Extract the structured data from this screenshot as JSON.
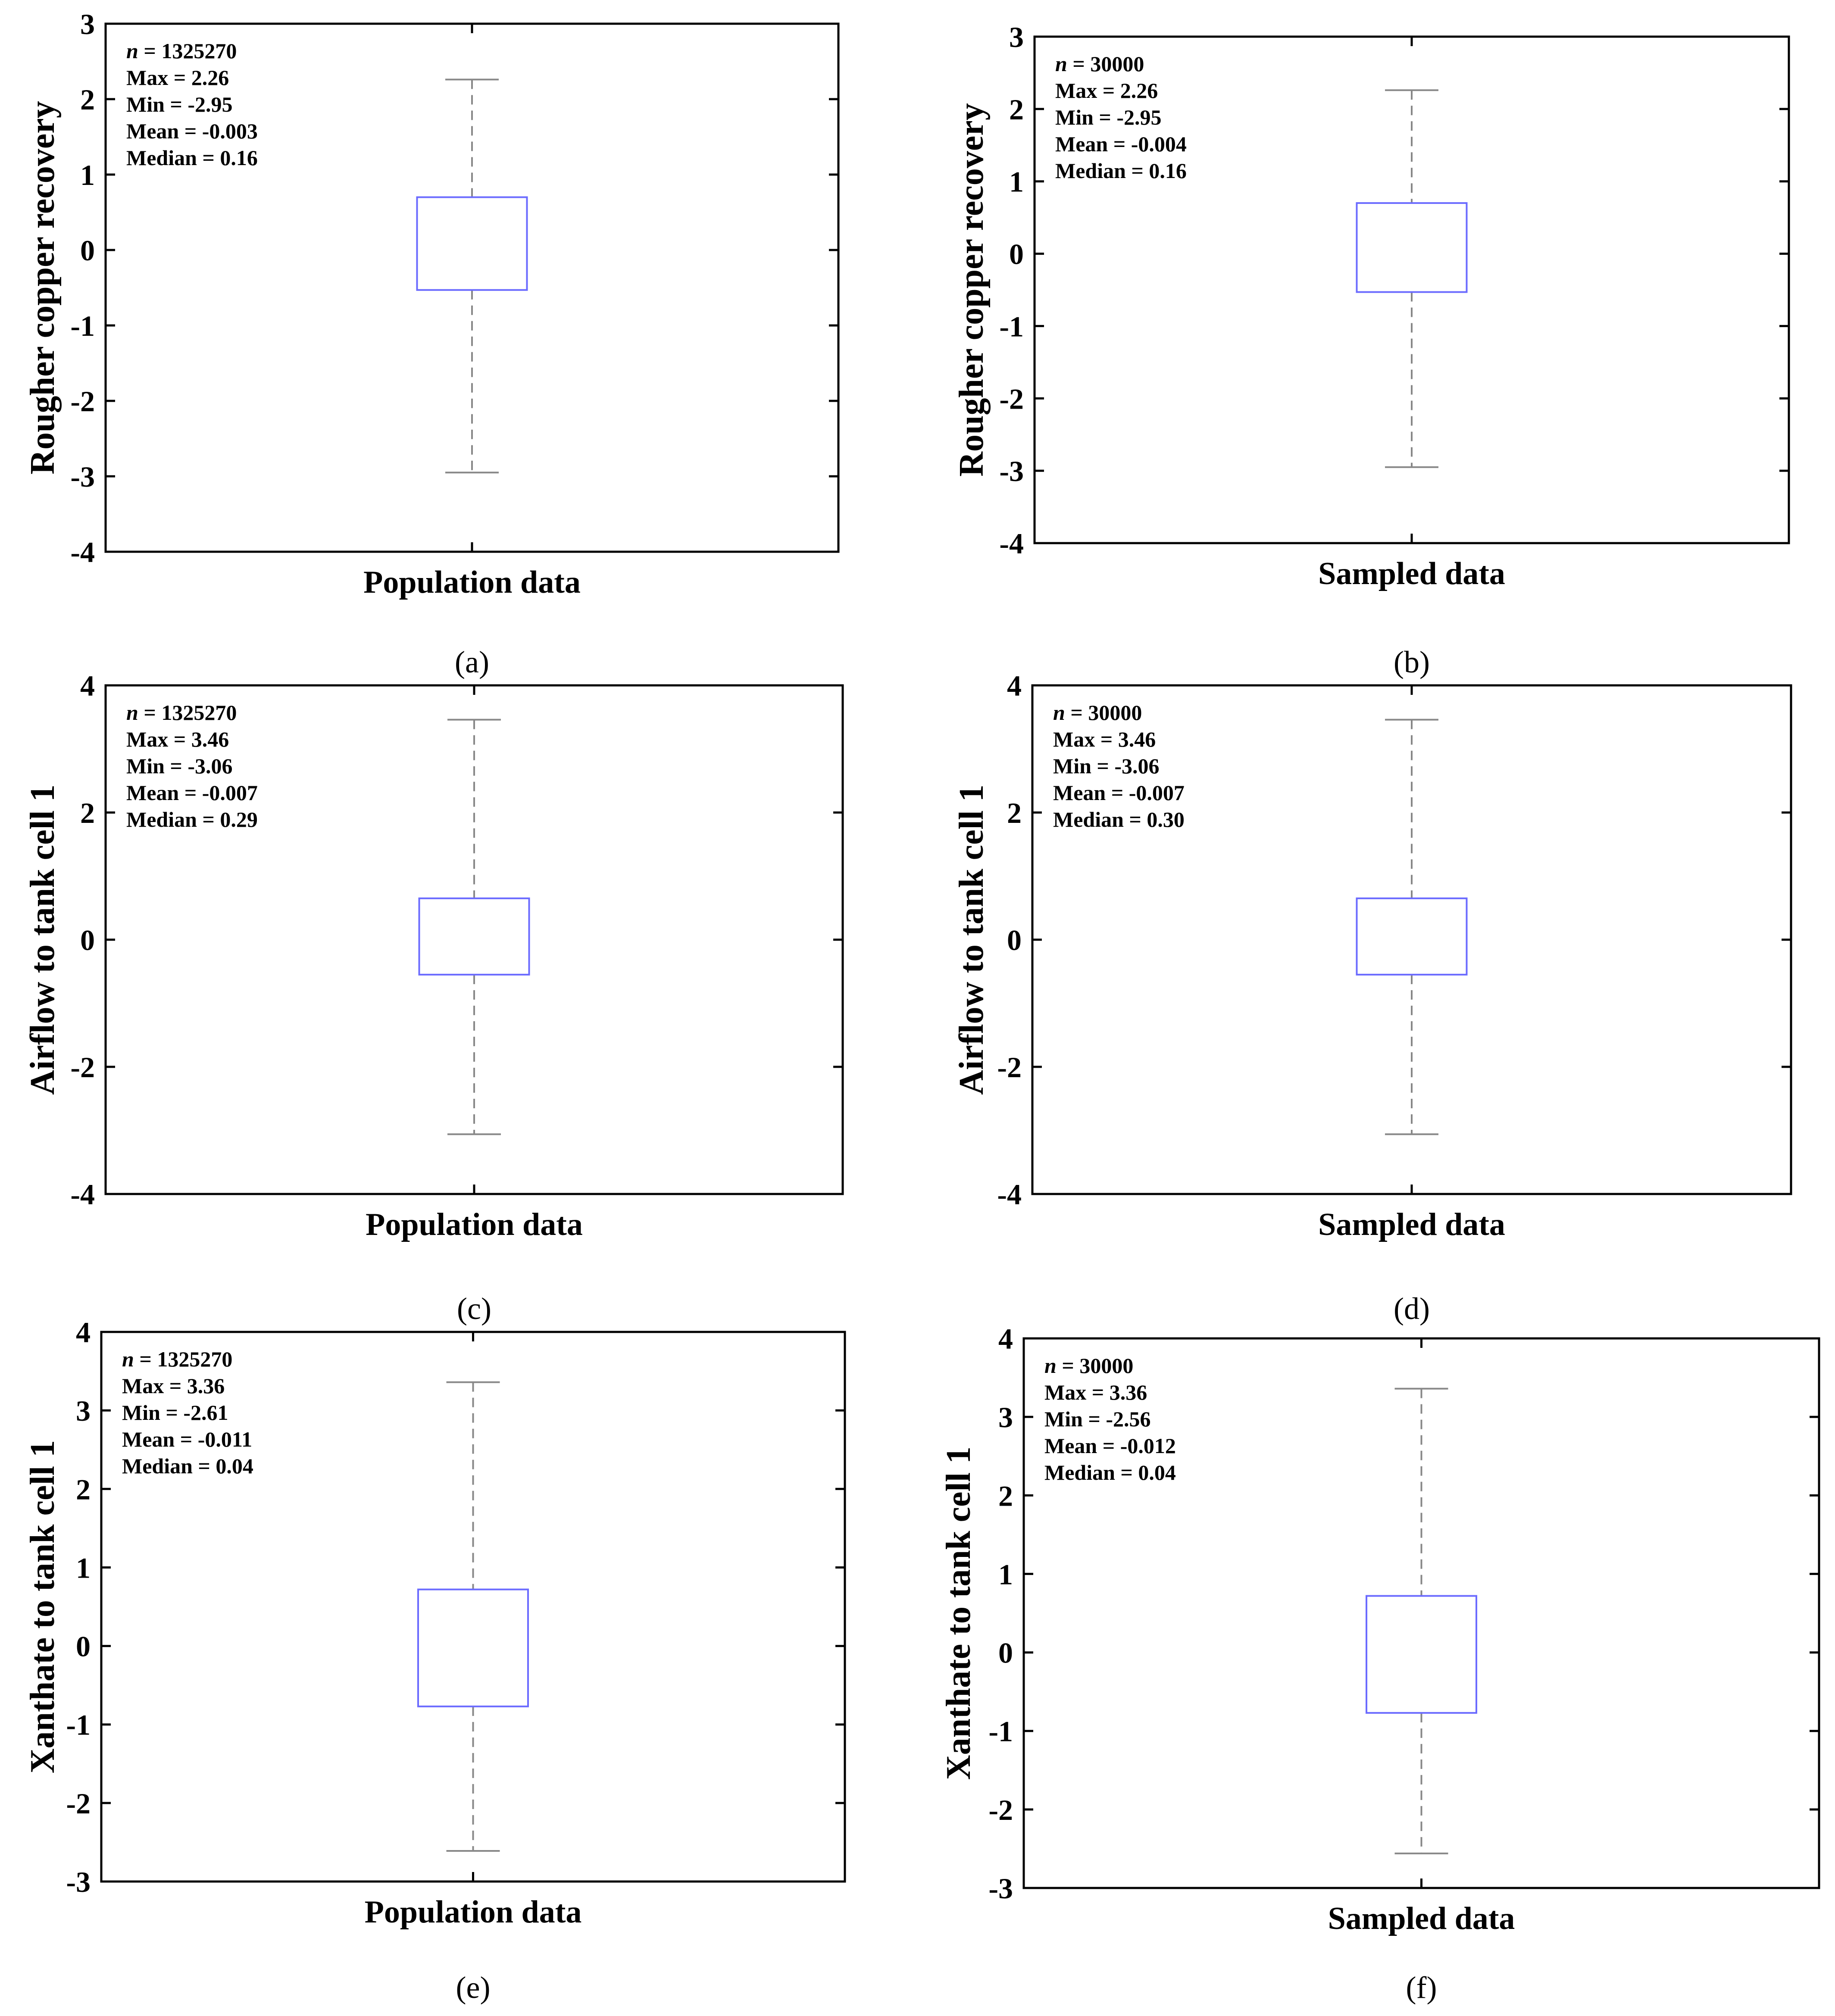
{
  "chart_data": [
    {
      "type": "boxplot",
      "panel_label": "(a)",
      "ylabel": "Rougher copper recovery",
      "categories": [
        "Population data"
      ],
      "ylim": [
        -4,
        3
      ],
      "yticks": [
        3,
        2,
        1,
        0,
        -1,
        -2,
        -3,
        -4
      ],
      "box": {
        "max": 2.26,
        "q3": 0.7,
        "median": 0.16,
        "q1": -0.53,
        "min": -2.95
      },
      "stats": [
        {
          "label": "n",
          "value": "1325270"
        },
        {
          "label": "Max",
          "value": "2.26"
        },
        {
          "label": "Min",
          "value": "-2.95"
        },
        {
          "label": "Mean",
          "value": "-0.003"
        },
        {
          "label": "Median",
          "value": "0.16"
        }
      ]
    },
    {
      "type": "boxplot",
      "panel_label": "(b)",
      "ylabel": "Rougher copper recovery",
      "categories": [
        "Sampled data"
      ],
      "ylim": [
        -4,
        3
      ],
      "yticks": [
        3,
        2,
        1,
        0,
        -1,
        -2,
        -3,
        -4
      ],
      "box": {
        "max": 2.26,
        "q3": 0.7,
        "median": 0.16,
        "q1": -0.53,
        "min": -2.95
      },
      "stats": [
        {
          "label": "n",
          "value": "30000"
        },
        {
          "label": "Max",
          "value": "2.26"
        },
        {
          "label": "Min",
          "value": "-2.95"
        },
        {
          "label": "Mean",
          "value": "-0.004"
        },
        {
          "label": "Median",
          "value": "0.16"
        }
      ]
    },
    {
      "type": "boxplot",
      "panel_label": "(c)",
      "ylabel": "Airflow to tank cell 1",
      "categories": [
        "Population data"
      ],
      "ylim": [
        -4,
        4
      ],
      "yticks": [
        4,
        2,
        0,
        -2,
        -4
      ],
      "box": {
        "max": 3.46,
        "q3": 0.65,
        "median": 0.29,
        "q1": -0.55,
        "min": -3.06
      },
      "stats": [
        {
          "label": "n",
          "value": "1325270"
        },
        {
          "label": "Max",
          "value": "3.46"
        },
        {
          "label": "Min",
          "value": "-3.06"
        },
        {
          "label": "Mean",
          "value": "-0.007"
        },
        {
          "label": "Median",
          "value": "0.29"
        }
      ]
    },
    {
      "type": "boxplot",
      "panel_label": "(d)",
      "ylabel": "Airflow to tank cell 1",
      "categories": [
        "Sampled data"
      ],
      "ylim": [
        -4,
        4
      ],
      "yticks": [
        4,
        2,
        0,
        -2,
        -4
      ],
      "box": {
        "max": 3.46,
        "q3": 0.65,
        "median": 0.3,
        "q1": -0.55,
        "min": -3.06
      },
      "stats": [
        {
          "label": "n",
          "value": "30000"
        },
        {
          "label": "Max",
          "value": "3.46"
        },
        {
          "label": "Min",
          "value": "-3.06"
        },
        {
          "label": "Mean",
          "value": "-0.007"
        },
        {
          "label": "Median",
          "value": "0.30"
        }
      ]
    },
    {
      "type": "boxplot",
      "panel_label": "(e)",
      "ylabel": "Xanthate to tank cell 1",
      "categories": [
        "Population data"
      ],
      "ylim": [
        -3,
        4
      ],
      "yticks": [
        4,
        3,
        2,
        1,
        0,
        -1,
        -2,
        -3
      ],
      "box": {
        "max": 3.36,
        "q3": 0.72,
        "median": 0.04,
        "q1": -0.77,
        "min": -2.61
      },
      "stats": [
        {
          "label": "n",
          "value": "1325270"
        },
        {
          "label": "Max",
          "value": "3.36"
        },
        {
          "label": "Min",
          "value": "-2.61"
        },
        {
          "label": "Mean",
          "value": "-0.011"
        },
        {
          "label": "Median",
          "value": "0.04"
        }
      ]
    },
    {
      "type": "boxplot",
      "panel_label": "(f)",
      "ylabel": "Xanthate to tank cell 1",
      "categories": [
        "Sampled data"
      ],
      "ylim": [
        -3,
        4
      ],
      "yticks": [
        4,
        3,
        2,
        1,
        0,
        -1,
        -2,
        -3
      ],
      "box": {
        "max": 3.36,
        "q3": 0.72,
        "median": 0.04,
        "q1": -0.77,
        "min": -2.56
      },
      "stats": [
        {
          "label": "n",
          "value": "30000"
        },
        {
          "label": "Max",
          "value": "3.36"
        },
        {
          "label": "Min",
          "value": "-2.56"
        },
        {
          "label": "Mean",
          "value": "-0.012"
        },
        {
          "label": "Median",
          "value": "0.04"
        }
      ]
    }
  ],
  "colors": {
    "box": "#6b6bff",
    "median_center": "#ff8a8a",
    "median_edge": "#2020ee",
    "whisker": "#888888",
    "axis": "#000000"
  }
}
